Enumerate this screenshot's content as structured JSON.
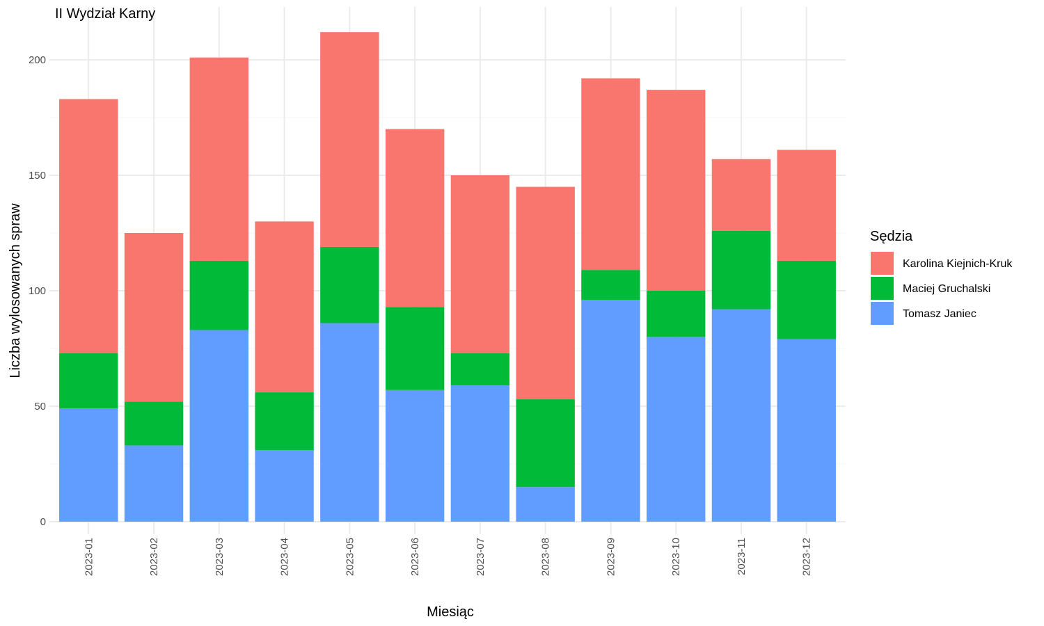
{
  "chart_data": {
    "type": "bar",
    "stacked": true,
    "title": "II Wydział Karny",
    "xlabel": "Miesiąc",
    "ylabel": "Liczba wylosowanych spraw",
    "ylim": [
      0,
      220
    ],
    "yticks": [
      0,
      50,
      100,
      150,
      200
    ],
    "grid": true,
    "legend_title": "Sędzia",
    "legend_position": "right",
    "categories": [
      "2023-01",
      "2023-02",
      "2023-03",
      "2023-04",
      "2023-05",
      "2023-06",
      "2023-07",
      "2023-08",
      "2023-09",
      "2023-10",
      "2023-11",
      "2023-12"
    ],
    "series": [
      {
        "name": "Karolina Kiejnich-Kruk",
        "color": "#F8766D",
        "values": [
          110,
          73,
          88,
          74,
          93,
          77,
          77,
          92,
          83,
          87,
          31,
          48
        ]
      },
      {
        "name": "Maciej Gruchalski",
        "color": "#00BA38",
        "values": [
          24,
          19,
          30,
          25,
          33,
          36,
          14,
          38,
          13,
          20,
          34,
          34
        ]
      },
      {
        "name": "Tomasz Janiec",
        "color": "#619CFF",
        "values": [
          49,
          33,
          83,
          31,
          86,
          57,
          59,
          15,
          96,
          80,
          92,
          79
        ]
      }
    ],
    "stack_order": [
      "Tomasz Janiec",
      "Maciej Gruchalski",
      "Karolina Kiejnich-Kruk"
    ]
  }
}
